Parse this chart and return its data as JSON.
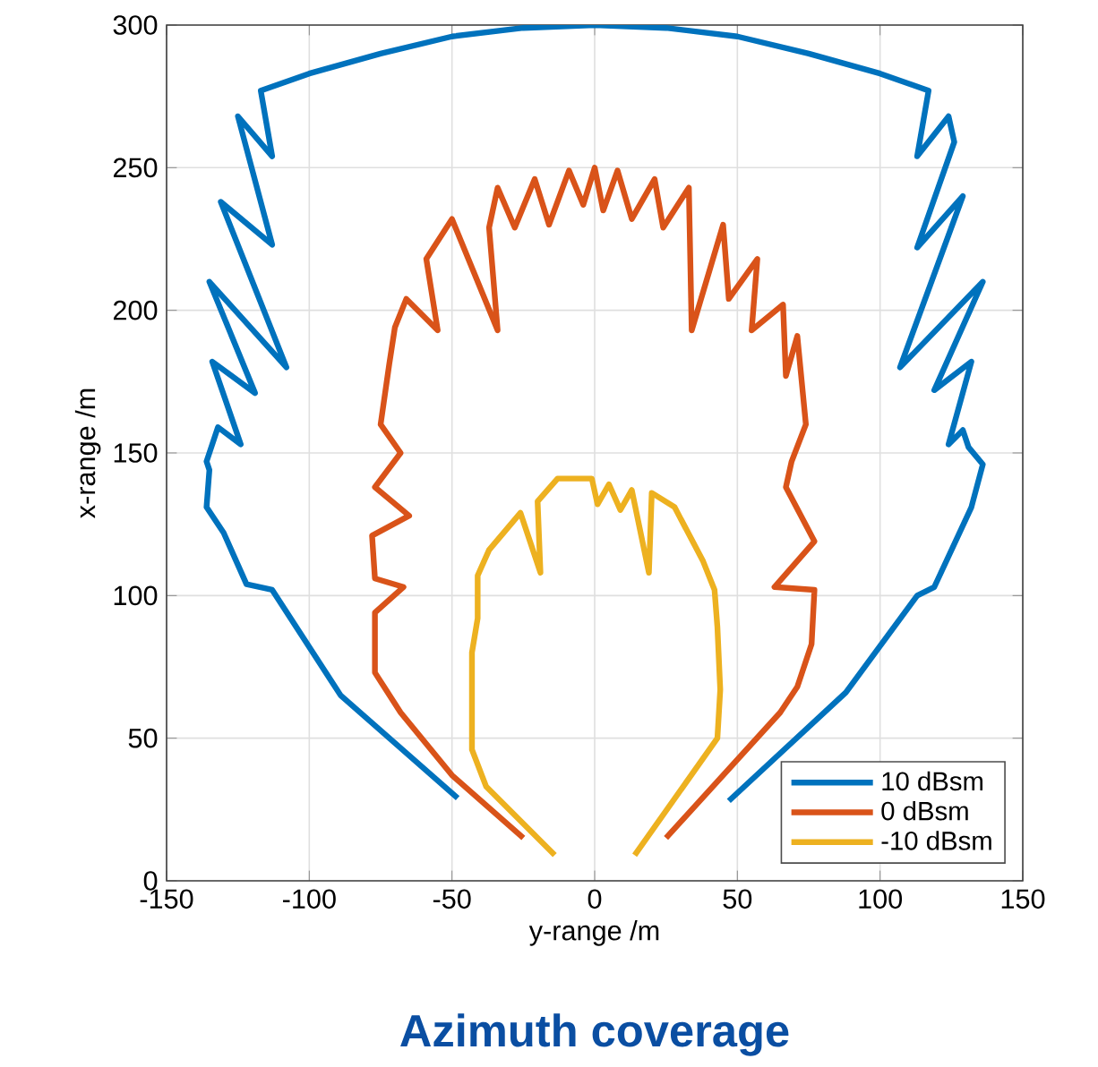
{
  "chart_data": {
    "type": "line",
    "title": "Azimuth coverage",
    "xlabel": "y-range /m",
    "ylabel": "x-range /m",
    "xlim": [
      -150,
      150
    ],
    "ylim": [
      0,
      300
    ],
    "xticks": [
      -150,
      -100,
      -50,
      0,
      50,
      100,
      150
    ],
    "yticks": [
      0,
      50,
      100,
      150,
      200,
      250,
      300
    ],
    "grid": true,
    "legend": "bottom right",
    "series": [
      {
        "name": "10 dBsm",
        "color": "#0072bd",
        "x": [
          -48,
          -89,
          -113,
          -122,
          -130,
          -136,
          -135,
          -136,
          -132,
          -124,
          -134,
          -119,
          -135,
          -108,
          -131,
          -113,
          -125,
          -113,
          -117,
          -100,
          -75,
          -50,
          -25,
          0,
          25,
          50,
          75,
          100,
          117,
          113,
          124,
          126,
          113,
          129,
          107,
          136,
          119,
          132,
          124,
          129,
          131,
          136,
          132,
          119,
          113,
          88,
          47
        ],
        "values": [
          29,
          65,
          102,
          104,
          122,
          131,
          144,
          147,
          159,
          153,
          182,
          171,
          210,
          180,
          238,
          223,
          268,
          254,
          277,
          283,
          290,
          296,
          299,
          300,
          299,
          296,
          290,
          283,
          277,
          254,
          268,
          259,
          222,
          240,
          180,
          210,
          172,
          182,
          153,
          158,
          152,
          146,
          131,
          103,
          100,
          66,
          28
        ]
      },
      {
        "name": "0 dBsm",
        "color": "#d95319",
        "x": [
          -25,
          -50,
          -68,
          -77,
          -77,
          -67,
          -77,
          -78,
          -65,
          -77,
          -68,
          -75,
          -72,
          -70,
          -66,
          -55,
          -59,
          -50,
          -34,
          -37,
          -34,
          -28,
          -21,
          -16,
          -9,
          -4,
          0,
          3,
          8,
          13,
          21,
          24,
          33,
          34,
          45,
          47,
          57,
          55,
          66,
          67,
          71,
          74,
          69,
          67,
          77,
          63,
          77,
          76,
          71,
          65,
          25
        ],
        "values": [
          15,
          37,
          59,
          73,
          94,
          103,
          106,
          121,
          128,
          138,
          150,
          160,
          181,
          194,
          204,
          193,
          218,
          232,
          193,
          229,
          243,
          229,
          246,
          230,
          249,
          237,
          250,
          235,
          249,
          232,
          246,
          229,
          243,
          193,
          230,
          204,
          218,
          193,
          202,
          177,
          191,
          160,
          147,
          138,
          119,
          103,
          102,
          83,
          68,
          59,
          15
        ]
      },
      {
        "name": "-10 dBsm",
        "color": "#edb120",
        "x": [
          -14,
          -38,
          -43,
          -43,
          -41,
          -41,
          -37,
          -26,
          -19,
          -20,
          -13,
          -1,
          1,
          5,
          9,
          13,
          19,
          20,
          28,
          38,
          42,
          43,
          44,
          43,
          14
        ],
        "values": [
          9,
          33,
          46,
          80,
          92,
          107,
          116,
          129,
          108,
          133,
          141,
          141,
          132,
          139,
          130,
          137,
          108,
          136,
          131,
          112,
          102,
          89,
          67,
          50,
          9
        ]
      }
    ]
  }
}
